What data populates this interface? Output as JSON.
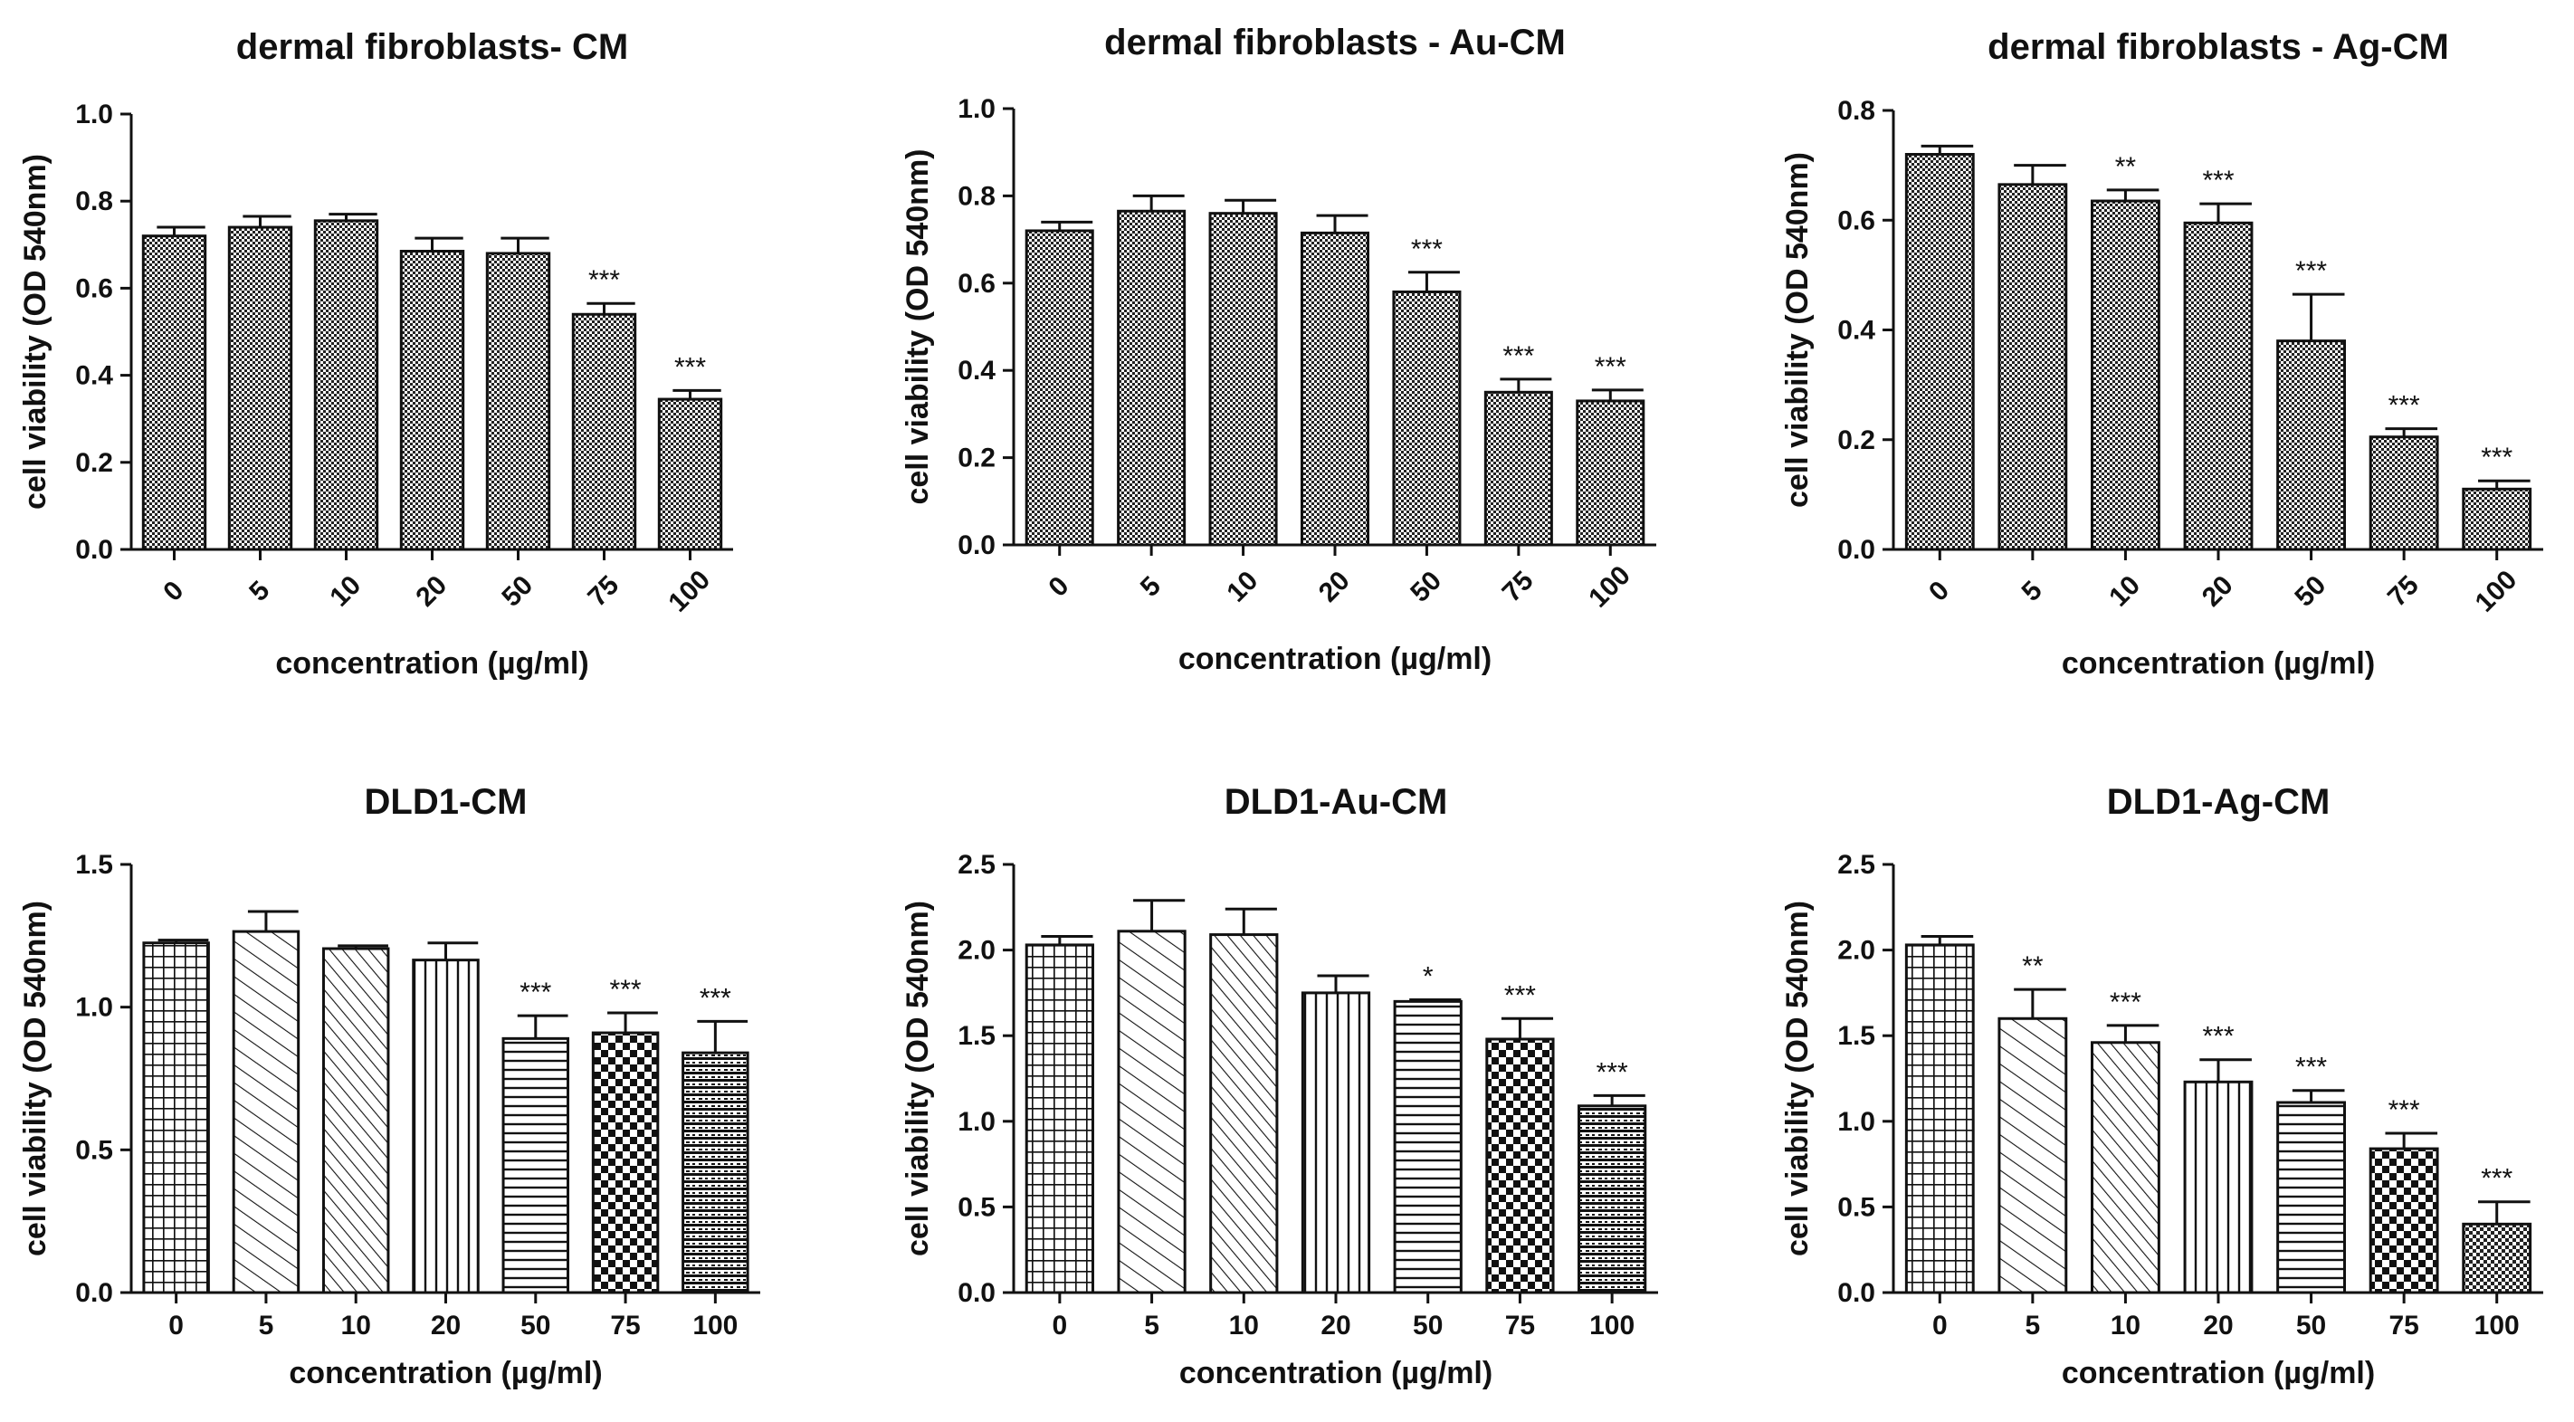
{
  "chart_data": [
    {
      "type": "bar",
      "title": "dermal fibroblasts- CM",
      "xlabel": "concentration (µg/ml)",
      "ylabel": "cell viability (OD 540nm)",
      "ylim": [
        0,
        1.0
      ],
      "yticks": [
        "0.0",
        "0.2",
        "0.4",
        "0.6",
        "0.8",
        "1.0"
      ],
      "categories": [
        "0",
        "5",
        "10",
        "20",
        "50",
        "75",
        "100"
      ],
      "values": [
        0.72,
        0.74,
        0.755,
        0.685,
        0.68,
        0.54,
        0.345
      ],
      "errors": [
        0.02,
        0.025,
        0.015,
        0.03,
        0.035,
        0.025,
        0.02
      ],
      "significance": [
        "",
        "",
        "",
        "",
        "",
        "***",
        "***"
      ],
      "rotated_ticks": true,
      "patterns": [
        "check",
        "check",
        "check",
        "check",
        "check",
        "check",
        "check"
      ]
    },
    {
      "type": "bar",
      "title": "dermal fibroblasts - Au-CM",
      "xlabel": "concentration (µg/ml)",
      "ylabel": "cell viability (OD 540nm)",
      "ylim": [
        0,
        1.0
      ],
      "yticks": [
        "0.0",
        "0.2",
        "0.4",
        "0.6",
        "0.8",
        "1.0"
      ],
      "categories": [
        "0",
        "5",
        "10",
        "20",
        "50",
        "75",
        "100"
      ],
      "values": [
        0.72,
        0.765,
        0.76,
        0.715,
        0.58,
        0.35,
        0.33
      ],
      "errors": [
        0.02,
        0.035,
        0.03,
        0.04,
        0.045,
        0.03,
        0.025
      ],
      "significance": [
        "",
        "",
        "",
        "",
        "***",
        "***",
        "***"
      ],
      "rotated_ticks": true,
      "patterns": [
        "check",
        "check",
        "check",
        "check",
        "check",
        "check",
        "check"
      ]
    },
    {
      "type": "bar",
      "title": "dermal fibroblasts - Ag-CM",
      "xlabel": "concentration (µg/ml)",
      "ylabel": "cell viability (OD 540nm)",
      "ylim": [
        0,
        0.8
      ],
      "yticks": [
        "0.0",
        "0.2",
        "0.4",
        "0.6",
        "0.8"
      ],
      "categories": [
        "0",
        "5",
        "10",
        "20",
        "50",
        "75",
        "100"
      ],
      "values": [
        0.72,
        0.665,
        0.635,
        0.595,
        0.38,
        0.205,
        0.11
      ],
      "errors": [
        0.015,
        0.035,
        0.02,
        0.035,
        0.085,
        0.015,
        0.015
      ],
      "significance": [
        "",
        "",
        "**",
        "***",
        "***",
        "***",
        "***"
      ],
      "rotated_ticks": true,
      "patterns": [
        "check",
        "check",
        "check",
        "check",
        "check",
        "check",
        "check"
      ]
    },
    {
      "type": "bar",
      "title": "DLD1-CM",
      "xlabel": "concentration (µg/ml)",
      "ylabel": "cell viability (OD 540nm)",
      "ylim": [
        0,
        1.5
      ],
      "yticks": [
        "0.0",
        "0.5",
        "1.0",
        "1.5"
      ],
      "categories": [
        "0",
        "5",
        "10",
        "20",
        "50",
        "75",
        "100"
      ],
      "values": [
        1.225,
        1.265,
        1.205,
        1.165,
        0.89,
        0.91,
        0.84
      ],
      "errors": [
        0.01,
        0.07,
        0.01,
        0.06,
        0.08,
        0.07,
        0.11
      ],
      "significance": [
        "",
        "",
        "",
        "",
        "***",
        "***",
        "***"
      ],
      "rotated_ticks": false,
      "patterns": [
        "grid",
        "diagDown",
        "diagDownDense",
        "vert",
        "horiz",
        "checker",
        "stripes"
      ]
    },
    {
      "type": "bar",
      "title": "DLD1-Au-CM",
      "xlabel": "concentration (µg/ml)",
      "ylabel": "cell viability (OD 540nm)",
      "ylim": [
        0,
        2.5
      ],
      "yticks": [
        "0.0",
        "0.5",
        "1.0",
        "1.5",
        "2.0",
        "2.5"
      ],
      "categories": [
        "0",
        "5",
        "10",
        "20",
        "50",
        "75",
        "100"
      ],
      "values": [
        2.03,
        2.11,
        2.09,
        1.75,
        1.7,
        1.48,
        1.09
      ],
      "errors": [
        0.05,
        0.18,
        0.15,
        0.1,
        0.01,
        0.12,
        0.06
      ],
      "significance": [
        "",
        "",
        "",
        "",
        "*",
        "***",
        "***"
      ],
      "rotated_ticks": false,
      "patterns": [
        "grid",
        "diagDown",
        "diagDownDense",
        "vert",
        "horiz",
        "checker",
        "stripes"
      ]
    },
    {
      "type": "bar",
      "title": "DLD1-Ag-CM",
      "xlabel": "concentration (µg/ml)",
      "ylabel": "cell viability (OD 540nm)",
      "ylim": [
        0,
        2.5
      ],
      "yticks": [
        "0.0",
        "0.5",
        "1.0",
        "1.5",
        "2.0",
        "2.5"
      ],
      "categories": [
        "0",
        "5",
        "10",
        "20",
        "50",
        "75",
        "100"
      ],
      "values": [
        2.03,
        1.6,
        1.46,
        1.23,
        1.11,
        0.84,
        0.4
      ],
      "errors": [
        0.05,
        0.17,
        0.1,
        0.13,
        0.07,
        0.09,
        0.13
      ],
      "significance": [
        "",
        "**",
        "***",
        "***",
        "***",
        "***",
        "***"
      ],
      "rotated_ticks": false,
      "patterns": [
        "grid",
        "diagDown",
        "diagDownDense",
        "vert",
        "horiz",
        "checker",
        "dots"
      ]
    }
  ]
}
